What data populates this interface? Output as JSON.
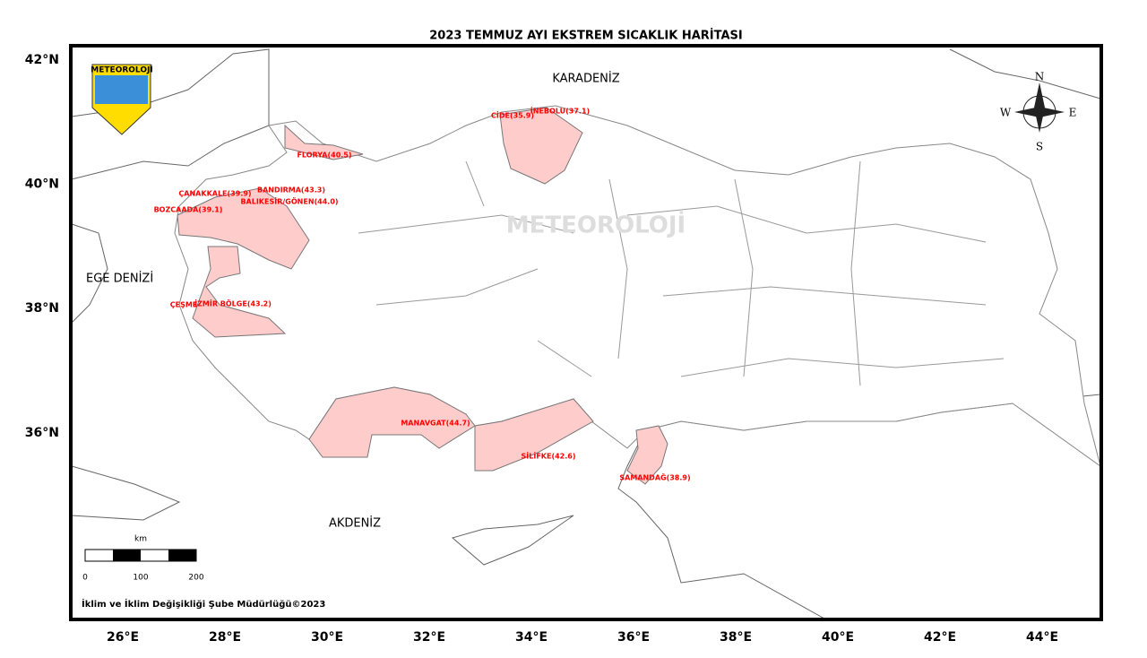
{
  "header": {
    "title": "2023 TEMMUZ AYI EKSTREM SICAKLIK HARİTASI"
  },
  "logo": {
    "text": "METEOROLOJİ"
  },
  "watermark": {
    "text": "METEOROLOJİ"
  },
  "seas": [
    "KARADENİZ",
    "EGE DENİZİ",
    "AKDENİZ"
  ],
  "stations": [
    "İNEBOLU(37.1)",
    "CİDE(35.9)",
    "FLORYA(40.5)",
    "ÇANAKKALE(39.9)",
    "BANDIRMA(43.3)",
    "BALIKESİR/GÖNEN(44.0)",
    "BOZCAADA(39.1)",
    "ÇEŞME",
    "İZMİR BÖLGE(43.2)",
    "MANAVGAT(44.7)",
    "SİLİFKE(42.6)",
    "SAMANDAĞ(38.9)"
  ],
  "lat_labels": [
    "42°N",
    "40°N",
    "38°N",
    "36°N"
  ],
  "lon_labels": [
    "26°E",
    "28°E",
    "30°E",
    "32°E",
    "34°E",
    "36°E",
    "38°E",
    "40°E",
    "42°E",
    "44°E"
  ],
  "scale": {
    "unit": "km",
    "ticks": [
      "0",
      "100",
      "200"
    ]
  },
  "compass": {
    "n": "N",
    "e": "E",
    "s": "S",
    "w": "W"
  },
  "footer": "İklim ve İklim Değişikliği Şube Müdürlüğü©2023"
}
